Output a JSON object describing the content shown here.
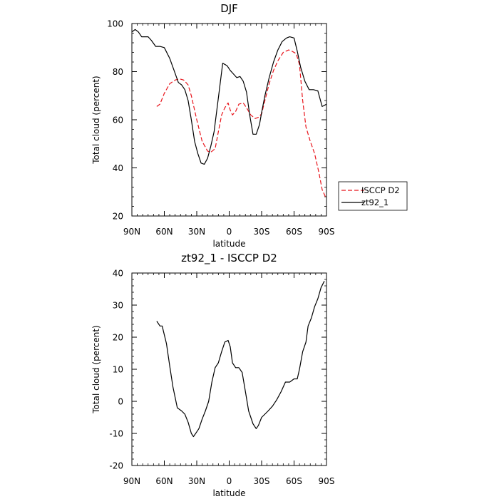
{
  "chart_data": [
    {
      "type": "line",
      "title": "DJF",
      "xlabel": "latitude",
      "ylabel": "Total cloud (percent)",
      "xlim": [
        -90,
        90
      ],
      "ylim": [
        20,
        100
      ],
      "yticks": [
        20,
        40,
        60,
        80,
        100
      ],
      "xticks": [
        -90,
        -60,
        -30,
        0,
        30,
        60,
        90
      ],
      "xtick_labels": [
        "90N",
        "60N",
        "30N",
        "0",
        "30S",
        "60S",
        "90S"
      ],
      "legend": {
        "placement": "right",
        "entries": [
          "ISCCP D2",
          "zt92_1"
        ]
      },
      "series": [
        {
          "name": "ISCCP D2",
          "color": "#e8141b",
          "style": "dashed",
          "x": [
            -67,
            -64,
            -60,
            -55,
            -50,
            -46,
            -42,
            -38,
            -35,
            -30,
            -25,
            -20,
            -17,
            -13,
            -10,
            -7,
            -4,
            -1,
            1,
            3,
            6,
            9,
            13,
            16,
            20,
            24,
            27,
            30,
            33,
            37,
            41,
            45,
            50,
            55,
            58,
            62,
            65,
            68,
            71,
            75,
            79,
            83,
            86,
            89
          ],
          "y": [
            65.5,
            66.5,
            71,
            75,
            76.5,
            77,
            76.5,
            74.5,
            70,
            60,
            51,
            47,
            46.5,
            48,
            55,
            62,
            65,
            67,
            64,
            62,
            63.5,
            66.5,
            67,
            65,
            62,
            60.5,
            61,
            62.5,
            68,
            75,
            80.5,
            84.5,
            88,
            89,
            88.5,
            87.5,
            83,
            68,
            57,
            51,
            46,
            38,
            31,
            28
          ]
        },
        {
          "name": "zt92_1",
          "color": "#000000",
          "style": "solid",
          "x": [
            -90,
            -87,
            -84,
            -81,
            -78,
            -75,
            -72,
            -68,
            -64,
            -60,
            -55,
            -51,
            -47,
            -44,
            -41,
            -38,
            -35,
            -32,
            -29,
            -26,
            -23,
            -20,
            -17,
            -14,
            -10,
            -6,
            -2,
            1,
            4,
            7,
            10,
            13,
            16,
            19,
            22,
            25,
            28,
            30,
            33,
            37,
            41,
            45,
            49,
            53,
            56,
            60,
            63,
            66,
            70,
            74,
            78,
            82,
            86,
            88,
            90
          ],
          "y": [
            96.5,
            97.5,
            96.5,
            94.5,
            94.5,
            94.5,
            93,
            90.5,
            90.5,
            90,
            85.5,
            80.5,
            75.5,
            74.5,
            72.5,
            68,
            60,
            51,
            46,
            42,
            41.5,
            44,
            49,
            55,
            69,
            83.5,
            82.5,
            80.5,
            79,
            77.5,
            78,
            76,
            71.5,
            62,
            54,
            54,
            58,
            63,
            70,
            77.5,
            84,
            89,
            92.5,
            94,
            94.5,
            94,
            88.5,
            82,
            76,
            72.5,
            72.5,
            72,
            65.5,
            66,
            66.5
          ]
        }
      ]
    },
    {
      "type": "line",
      "title": "zt92_1 - ISCCP D2",
      "xlabel": "latitude",
      "ylabel": "Total cloud (percent)",
      "xlim": [
        -90,
        90
      ],
      "ylim": [
        -20,
        40
      ],
      "yticks": [
        -20,
        -10,
        0,
        10,
        20,
        30,
        40
      ],
      "xticks": [
        -90,
        -60,
        -30,
        0,
        30,
        60,
        90
      ],
      "xtick_labels": [
        "90N",
        "60N",
        "30N",
        "0",
        "30S",
        "60S",
        "90S"
      ],
      "series": [
        {
          "color": "#000000",
          "style": "solid",
          "x": [
            -67,
            -64,
            -62,
            -58,
            -55,
            -52,
            -48,
            -46,
            -44,
            -41,
            -38,
            -35,
            -33,
            -30,
            -28,
            -25,
            -22,
            -19,
            -16,
            -13,
            -10,
            -7,
            -4,
            -1,
            1,
            3,
            6,
            9,
            12,
            15,
            18,
            22,
            25,
            27,
            30,
            33,
            36,
            40,
            44,
            48,
            52,
            56,
            60,
            63,
            65,
            68,
            71,
            73,
            76,
            79,
            82,
            85,
            88
          ],
          "y": [
            25,
            23.5,
            23.5,
            18,
            11,
            4.5,
            -2,
            -2.5,
            -3,
            -4,
            -6.5,
            -10,
            -11,
            -9.5,
            -8.5,
            -5.5,
            -3,
            0,
            6,
            10.5,
            12,
            15.5,
            18.5,
            19,
            17,
            12,
            10.5,
            10.5,
            9,
            3,
            -3,
            -7,
            -8.5,
            -7.5,
            -5,
            -4,
            -3,
            -1.5,
            0.5,
            3,
            6,
            6,
            7,
            7,
            10,
            15.5,
            18.5,
            23.5,
            26,
            29.5,
            32,
            35.5,
            37.5
          ]
        }
      ]
    }
  ]
}
